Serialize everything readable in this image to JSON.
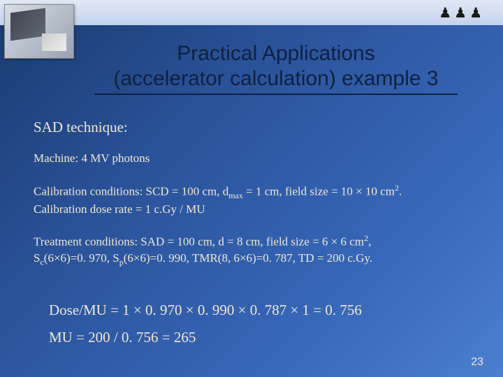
{
  "slide": {
    "title_line1": "Practical Applications",
    "title_line2": "(accelerator calculation) example 3",
    "sad_technique": "SAD technique:",
    "machine": "Machine: 4 MV photons",
    "calibration_line1_prefix": "Calibration conditions: SCD = 100 cm, d",
    "calibration_line1_sub": "max",
    "calibration_line1_mid": " = 1 cm, field size = 10 × 10 cm",
    "calibration_line1_sup": "2",
    "calibration_line1_suffix": ".",
    "calibration_line2": "Calibration dose rate = 1 c.Gy / MU",
    "treatment_line1_prefix": "Treatment conditions: SAD = 100 cm, d = 8 cm, field size = 6 × 6 cm",
    "treatment_line1_sup": "2",
    "treatment_line1_suffix": ",",
    "treatment_line2_s": "S",
    "treatment_line2_sc": "c",
    "treatment_line2_mid1": "(6×6)=0. 970, S",
    "treatment_line2_sp": "p",
    "treatment_line2_mid2": "(6×6)=0. 990, TMR(8, 6×6)=0. 787, TD = 200 c.Gy.",
    "calc_line1": "Dose/MU = 1 × 0. 970 × 0. 990 × 0. 787 × 1 = 0. 756",
    "calc_line2": "MU = 200 / 0. 756 = 265",
    "page_number": "23"
  },
  "styling": {
    "background_gradient_colors": [
      "#1a3a6e",
      "#2a5298",
      "#3666b8",
      "#4a7fd0"
    ],
    "title_color": "#102040",
    "body_text_color": "#f0e8d8",
    "top_bar_gradient": [
      "#e0e8f5",
      "#c4d2ea"
    ],
    "title_fontsize": 30,
    "body_fontsize": 17,
    "calc_fontsize": 21,
    "page_num_fontsize": 16,
    "slide_width": 720,
    "slide_height": 540
  }
}
